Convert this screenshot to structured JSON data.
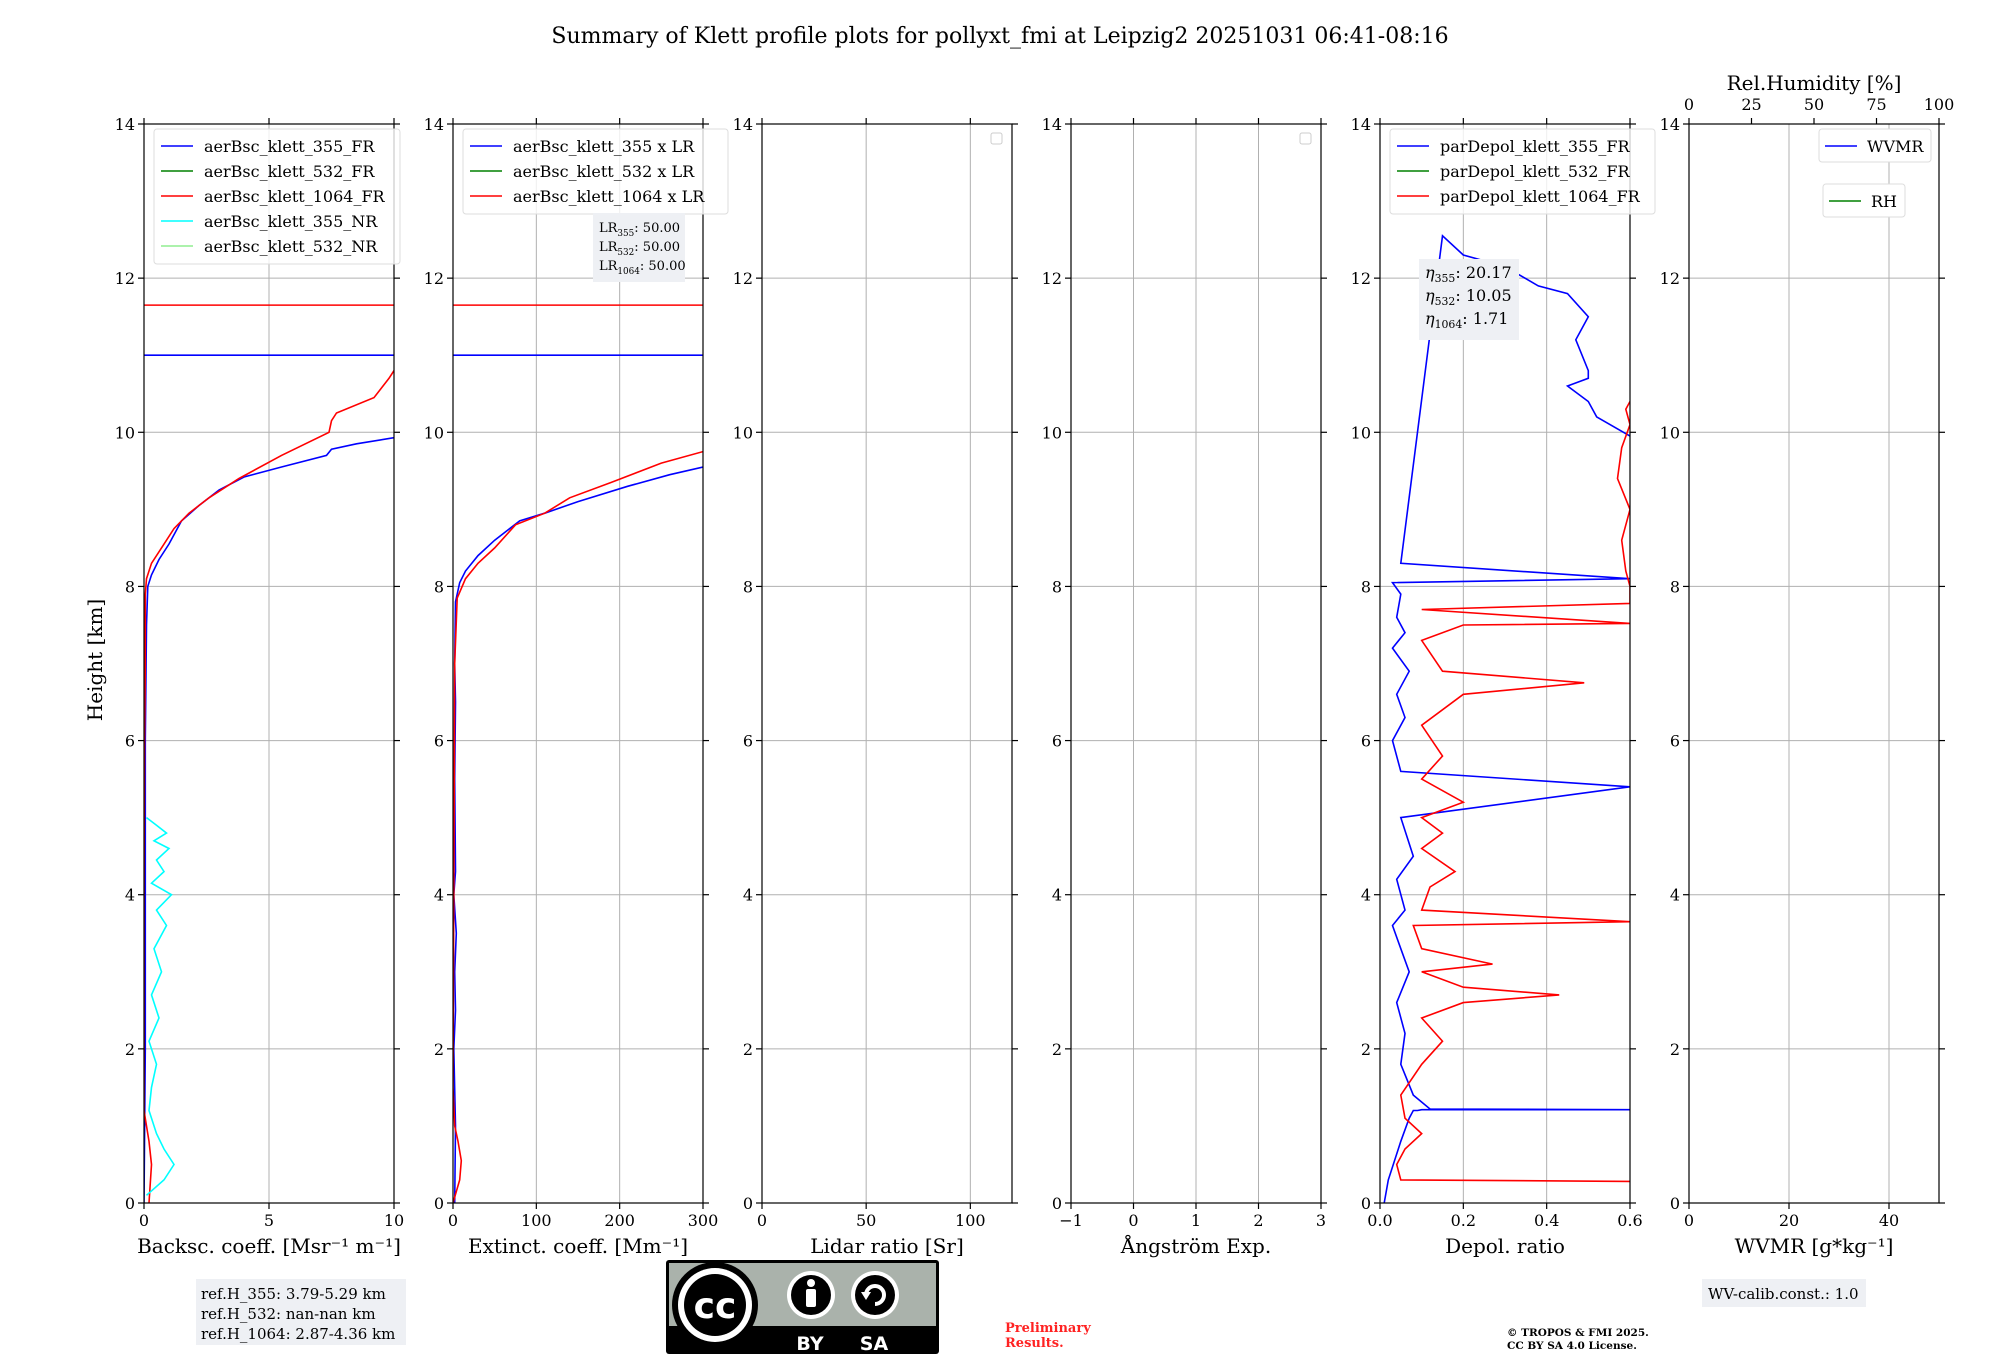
{
  "title": "Summary of Klett profile plots for pollyxt_fmi at Leipzig2 20251031 06:41-08:16",
  "y_label": "Height [km]",
  "chart_data": [
    {
      "id": "backscatter",
      "type": "line",
      "xlabel": "Backsc. coeff. [Msr⁻¹ m⁻¹]",
      "xlim": [
        0,
        10
      ],
      "xticks": [
        0,
        5,
        10
      ],
      "ylim": [
        0,
        14
      ],
      "yticks": [
        0,
        2,
        4,
        6,
        8,
        10,
        12,
        14
      ],
      "legend": {
        "position": "top-left"
      },
      "series": [
        {
          "name": "aerBsc_klett_355_FR",
          "color": "#0000ff",
          "x": [
            0.0,
            0.05,
            0.05,
            0.1,
            0.15,
            0.3,
            0.6,
            1.0,
            1.5,
            2.2,
            3.0,
            4.0,
            5.5,
            7.3,
            7.5,
            8.5,
            10.0
          ],
          "y": [
            0.0,
            2.0,
            6.0,
            7.5,
            8.0,
            8.15,
            8.35,
            8.55,
            8.85,
            9.05,
            9.25,
            9.42,
            9.55,
            9.7,
            9.78,
            9.85,
            9.93
          ]
        },
        {
          "name": "aerBsc_klett_532_FR",
          "color": "#008000",
          "x": [],
          "y": []
        },
        {
          "name": "aerBsc_klett_1064_FR",
          "color": "#ff0000",
          "x": [
            0.2,
            0.3,
            0.2,
            0.0,
            0.0,
            0.02,
            0.05,
            0.05,
            0.1,
            0.3,
            0.7,
            1.2,
            1.8,
            2.6,
            3.8,
            5.5,
            7.4,
            7.5,
            7.7,
            9.2,
            9.8,
            10.0
          ],
          "y": [
            0.0,
            0.5,
            0.8,
            1.2,
            4.0,
            6.0,
            7.0,
            7.9,
            8.1,
            8.3,
            8.5,
            8.75,
            8.95,
            9.15,
            9.4,
            9.7,
            10.0,
            10.15,
            10.25,
            10.45,
            10.7,
            10.8
          ]
        },
        {
          "name": "aerBsc_klett_355_NR",
          "color": "#00ffff",
          "x": [
            0.1,
            0.8,
            1.2,
            0.8,
            0.5,
            0.2,
            0.3,
            0.5,
            0.2,
            0.6,
            0.3,
            0.7,
            0.4,
            0.9,
            0.5,
            1.1,
            0.3,
            0.8,
            0.5,
            1.0,
            0.4,
            0.9,
            0.5,
            0.1
          ],
          "y": [
            0.1,
            0.3,
            0.5,
            0.7,
            0.9,
            1.2,
            1.5,
            1.8,
            2.1,
            2.4,
            2.7,
            3.0,
            3.3,
            3.6,
            3.8,
            4.0,
            4.15,
            4.3,
            4.45,
            4.6,
            4.7,
            4.8,
            4.9,
            5.0
          ]
        },
        {
          "name": "aerBsc_klett_532_NR",
          "color": "#90ee90",
          "x": [],
          "y": []
        }
      ],
      "hlines": [
        {
          "y": 11.0,
          "color": "#0000ff"
        },
        {
          "y": 11.65,
          "color": "#ff0000"
        }
      ]
    },
    {
      "id": "extinction",
      "type": "line",
      "xlabel": "Extinct. coeff. [Mm⁻¹]",
      "xlim": [
        0,
        300
      ],
      "xticks": [
        0,
        100,
        200,
        300
      ],
      "ylim": [
        0,
        14
      ],
      "yticks": [
        0,
        2,
        4,
        6,
        8,
        10,
        12,
        14
      ],
      "legend": {
        "position": "top-left"
      },
      "annotation": {
        "lines": [
          {
            "label": "LR",
            "sub": "355",
            "value": ": 50.00"
          },
          {
            "label": "LR",
            "sub": "532",
            "value": ": 50.00"
          },
          {
            "label": "LR",
            "sub": "1064",
            "value": ": 50.00"
          }
        ]
      },
      "series": [
        {
          "name": "aerBsc_klett_355 x LR",
          "color": "#0000ff",
          "x": [
            2,
            3,
            1,
            3,
            2,
            4,
            1,
            3,
            2,
            3,
            2,
            3,
            8,
            15,
            30,
            50,
            80,
            110,
            150,
            210,
            260,
            300
          ],
          "y": [
            0.0,
            1.0,
            2.0,
            2.5,
            3.0,
            3.5,
            4.0,
            4.3,
            5.5,
            6.5,
            7.0,
            7.8,
            8.05,
            8.2,
            8.4,
            8.6,
            8.85,
            8.95,
            9.1,
            9.3,
            9.45,
            9.55
          ]
        },
        {
          "name": "aerBsc_klett_532 x LR",
          "color": "#008000",
          "x": [],
          "y": []
        },
        {
          "name": "aerBsc_klett_1064 x LR",
          "color": "#ff0000",
          "x": [
            0,
            8,
            10,
            6,
            2,
            0,
            1,
            2,
            5,
            15,
            30,
            50,
            75,
            110,
            140,
            190,
            250,
            300
          ],
          "y": [
            0.0,
            0.3,
            0.55,
            0.8,
            1.0,
            1.5,
            4.0,
            7.0,
            7.85,
            8.1,
            8.3,
            8.5,
            8.8,
            8.95,
            9.15,
            9.35,
            9.6,
            9.75
          ]
        }
      ],
      "hlines": [
        {
          "y": 11.0,
          "color": "#0000ff"
        },
        {
          "y": 11.65,
          "color": "#ff0000"
        }
      ]
    },
    {
      "id": "lidar_ratio",
      "type": "line",
      "xlabel": "Lidar ratio [Sr]",
      "xlim": [
        0,
        120
      ],
      "xticks": [
        0,
        50,
        100
      ],
      "ylim": [
        0,
        14
      ],
      "yticks": [
        0,
        2,
        4,
        6,
        8,
        10,
        12,
        14
      ],
      "series": []
    },
    {
      "id": "angstrom",
      "type": "line",
      "xlabel": "Ångström Exp.",
      "xlim": [
        -1,
        3
      ],
      "xticks": [
        -1,
        0,
        1,
        2,
        3
      ],
      "ylim": [
        0,
        14
      ],
      "yticks": [
        0,
        2,
        4,
        6,
        8,
        10,
        12,
        14
      ],
      "series": []
    },
    {
      "id": "depol",
      "type": "line",
      "xlabel": "Depol. ratio",
      "xlim": [
        0,
        0.6
      ],
      "xticks": [
        0.0,
        0.2,
        0.4,
        0.6
      ],
      "ylim": [
        0,
        14
      ],
      "yticks": [
        0,
        2,
        4,
        6,
        8,
        10,
        12,
        14
      ],
      "legend": {
        "position": "top-left"
      },
      "annotation": {
        "lines": [
          {
            "label": "η",
            "sub": "355",
            "value": ": 20.17"
          },
          {
            "label": "η",
            "sub": "532",
            "value": ": 10.05"
          },
          {
            "label": "η",
            "sub": "1064",
            "value": ": 1.71"
          }
        ]
      },
      "series": [
        {
          "name": "parDepol_klett_355_FR",
          "color": "#0000ff",
          "x": [
            0.01,
            0.02,
            0.05,
            0.07,
            0.08,
            0.09,
            0.1,
            0.12,
            0.6,
            0.12,
            0.08,
            0.05,
            0.06,
            0.04,
            0.07,
            0.05,
            0.03,
            0.06,
            0.04,
            0.08,
            0.05,
            0.6,
            0.05,
            0.03,
            0.06,
            0.04,
            0.07,
            0.03,
            0.06,
            0.04,
            0.05,
            0.03,
            0.6,
            0.05,
            0.15,
            0.2,
            0.3,
            0.38,
            0.45,
            0.5,
            0.47,
            0.5,
            0.5,
            0.45,
            0.5,
            0.52,
            0.6
          ],
          "y": [
            0.0,
            0.3,
            0.8,
            1.1,
            1.2,
            1.2,
            1.21,
            1.21,
            1.21,
            1.22,
            1.4,
            1.8,
            2.2,
            2.6,
            3.0,
            3.3,
            3.6,
            3.8,
            4.2,
            4.5,
            5.0,
            5.4,
            5.6,
            6.0,
            6.3,
            6.6,
            6.9,
            7.2,
            7.4,
            7.6,
            7.9,
            8.05,
            8.1,
            8.3,
            12.55,
            12.3,
            12.15,
            11.9,
            11.8,
            11.5,
            11.2,
            10.8,
            10.7,
            10.6,
            10.4,
            10.2,
            9.95
          ]
        },
        {
          "name": "parDepol_klett_532_FR",
          "color": "#008000",
          "x": [],
          "y": []
        },
        {
          "name": "parDepol_klett_1064_FR",
          "color": "#ff0000",
          "x": [
            0.6,
            0.05,
            0.04,
            0.06,
            0.1,
            0.06,
            0.05,
            0.1,
            0.15,
            0.1,
            0.2,
            0.43,
            0.2,
            0.1,
            0.27,
            0.1,
            0.08,
            0.6,
            0.1,
            0.12,
            0.18,
            0.1,
            0.15,
            0.1,
            0.2,
            0.1,
            0.15,
            0.1,
            0.2,
            0.49,
            0.15,
            0.1,
            0.2,
            0.6,
            0.1,
            0.6,
            0.6,
            0.59,
            0.58,
            0.6,
            0.57,
            0.58,
            0.6,
            0.59,
            0.6
          ],
          "y": [
            0.28,
            0.3,
            0.5,
            0.7,
            0.9,
            1.1,
            1.4,
            1.8,
            2.1,
            2.4,
            2.6,
            2.7,
            2.8,
            3.0,
            3.1,
            3.3,
            3.6,
            3.65,
            3.8,
            4.1,
            4.3,
            4.6,
            4.8,
            5.0,
            5.2,
            5.5,
            5.8,
            6.2,
            6.6,
            6.75,
            6.9,
            7.3,
            7.5,
            7.52,
            7.7,
            7.78,
            8.0,
            8.2,
            8.6,
            9.0,
            9.4,
            9.8,
            10.1,
            10.3,
            10.4
          ]
        }
      ]
    },
    {
      "id": "wvmr",
      "type": "line",
      "xlabel": "WVMR [g*kg⁻¹]",
      "xlim": [
        0,
        50
      ],
      "xticks": [
        0,
        20,
        40
      ],
      "ylim": [
        0,
        14
      ],
      "yticks": [
        0,
        2,
        4,
        6,
        8,
        10,
        12,
        14
      ],
      "top_axis": {
        "label": "Rel.Humidity [%]",
        "xlim": [
          0,
          100
        ],
        "ticks": [
          0,
          25,
          50,
          75,
          100
        ]
      },
      "legend": {
        "position": "top-right"
      },
      "series": [
        {
          "name": "WVMR",
          "color": "#0000ff",
          "x": [],
          "y": []
        },
        {
          "name": "RH",
          "color": "#008000",
          "x": [],
          "y": []
        }
      ]
    }
  ],
  "ref_heights": [
    "ref.H_355: 3.79-5.29 km",
    "ref.H_532: nan-nan km",
    "ref.H_1064: 2.87-4.36 km"
  ],
  "wv_calib": "WV-calib.const.: 1.0",
  "license_badge": {
    "left": "BY",
    "right": "SA"
  },
  "preliminary": [
    "Preliminary",
    "Results."
  ],
  "copyright": [
    "© TROPOS & FMI 2025.",
    "CC BY SA 4.0 License."
  ]
}
